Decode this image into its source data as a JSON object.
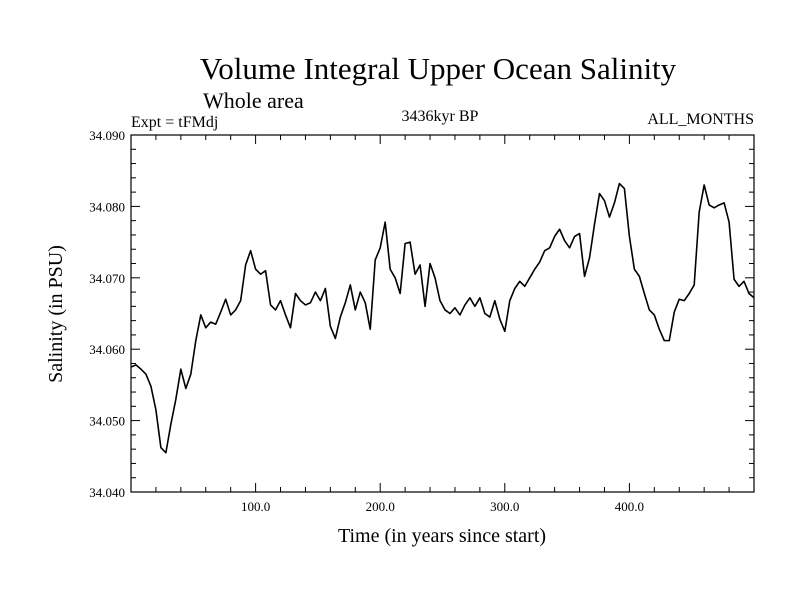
{
  "chart_data": {
    "type": "line",
    "title": "Volume Integral Upper Ocean Salinity",
    "subtitle": "Whole area",
    "left_label": "Expt = tFMdj",
    "center_label": "3436kyr BP",
    "right_label": "ALL_MONTHS",
    "xlabel": "Time (in years since start)",
    "ylabel": "Salinity (in PSU)",
    "xlim": [
      0,
      500
    ],
    "ylim": [
      34.04,
      34.09
    ],
    "x_ticks": [
      100,
      200,
      300,
      400
    ],
    "x_tick_labels": [
      "100.0",
      "200.0",
      "300.0",
      "400.0"
    ],
    "y_ticks": [
      34.04,
      34.05,
      34.06,
      34.07,
      34.08,
      34.09
    ],
    "y_tick_labels": [
      "34.040",
      "34.050",
      "34.060",
      "34.070",
      "34.080",
      "34.090"
    ],
    "grid": false,
    "series": [
      {
        "name": "salinity",
        "color": "#000000",
        "x": [
          0,
          4,
          8,
          12,
          16,
          20,
          24,
          28,
          32,
          36,
          40,
          44,
          48,
          52,
          56,
          60,
          64,
          68,
          72,
          76,
          80,
          84,
          88,
          92,
          96,
          100,
          104,
          108,
          112,
          116,
          120,
          124,
          128,
          132,
          136,
          140,
          144,
          148,
          152,
          156,
          160,
          164,
          168,
          172,
          176,
          180,
          184,
          188,
          192,
          196,
          200,
          204,
          208,
          212,
          216,
          220,
          224,
          228,
          232,
          236,
          240,
          244,
          248,
          252,
          256,
          260,
          264,
          268,
          272,
          276,
          280,
          284,
          288,
          292,
          296,
          300,
          304,
          308,
          312,
          316,
          320,
          324,
          328,
          332,
          336,
          340,
          344,
          348,
          352,
          356,
          360,
          364,
          368,
          372,
          376,
          380,
          384,
          388,
          392,
          396,
          400,
          404,
          408,
          412,
          416,
          420,
          424,
          428,
          432,
          436,
          440,
          444,
          448,
          452,
          456,
          460,
          464,
          468,
          472,
          476,
          480,
          484,
          488,
          492,
          496,
          500
        ],
        "values": [
          34.0575,
          34.0578,
          34.0572,
          34.0565,
          34.0548,
          34.0515,
          34.0462,
          34.0455,
          34.0495,
          34.053,
          34.0572,
          34.0545,
          34.0565,
          34.0612,
          34.0648,
          34.063,
          34.0638,
          34.0635,
          34.0652,
          34.067,
          34.0648,
          34.0655,
          34.0668,
          34.0718,
          34.0738,
          34.0712,
          34.0705,
          34.071,
          34.0662,
          34.0655,
          34.0668,
          34.0648,
          34.063,
          34.0678,
          34.0668,
          34.0662,
          34.0665,
          34.068,
          34.0668,
          34.0685,
          34.0632,
          34.0615,
          34.0645,
          34.0665,
          34.069,
          34.0655,
          34.068,
          34.0665,
          34.0628,
          34.0725,
          34.0742,
          34.0778,
          34.0712,
          34.07,
          34.0678,
          34.0748,
          34.075,
          34.0705,
          34.0718,
          34.066,
          34.072,
          34.07,
          34.0668,
          34.0655,
          34.065,
          34.0658,
          34.0648,
          34.0662,
          34.0672,
          34.066,
          34.0672,
          34.065,
          34.0645,
          34.0668,
          34.0642,
          34.0625,
          34.0668,
          34.0685,
          34.0695,
          34.0688,
          34.07,
          34.0712,
          34.0722,
          34.0738,
          34.0742,
          34.0758,
          34.0768,
          34.0752,
          34.0742,
          34.0758,
          34.0762,
          34.0702,
          34.0728,
          34.0775,
          34.0818,
          34.0808,
          34.0785,
          34.0805,
          34.0832,
          34.0825,
          34.0758,
          34.0712,
          34.0702,
          34.0678,
          34.0655,
          34.0648,
          34.0628,
          34.0612,
          34.0612,
          34.0652,
          34.067,
          34.0668,
          34.0678,
          34.069,
          34.0792,
          34.083,
          34.0802,
          34.0798,
          34.0802,
          34.0805,
          34.0778,
          34.0698,
          34.0688,
          34.0695,
          34.0678,
          34.0672
        ]
      }
    ]
  }
}
